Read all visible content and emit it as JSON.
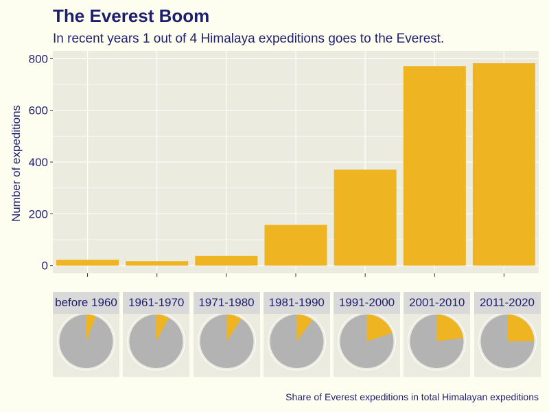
{
  "chart_data": [
    {
      "type": "bar",
      "title": "The Everest Boom",
      "subtitle": "In recent years 1 out of 4 Himalaya expeditions goes to the Everest.",
      "xlabel": "",
      "ylabel": "Number of expeditions",
      "categories": [
        "before 1960",
        "1961-1970",
        "1971-1980",
        "1981-1990",
        "1991-2000",
        "2001-2010",
        "2011-2020"
      ],
      "values": [
        22,
        17,
        37,
        157,
        371,
        771,
        782
      ],
      "ylim": [
        -30,
        830
      ],
      "yticks": [
        0,
        200,
        400,
        600,
        800
      ],
      "xtick_labels_shown": false,
      "bar_color": "#eeb422",
      "panel_background": "#ecebdf",
      "grid": true
    },
    {
      "type": "pie",
      "facets": [
        "before 1960",
        "1961-1970",
        "1971-1980",
        "1981-1990",
        "1991-2000",
        "2001-2010",
        "2011-2020"
      ],
      "everest_share": [
        0.06,
        0.08,
        0.09,
        0.1,
        0.2,
        0.23,
        0.25
      ],
      "colors": {
        "everest": "#eeb422",
        "other": "#b3b3b3"
      },
      "caption": "Share of Everest expeditions in total Himalayan expeditions"
    }
  ]
}
